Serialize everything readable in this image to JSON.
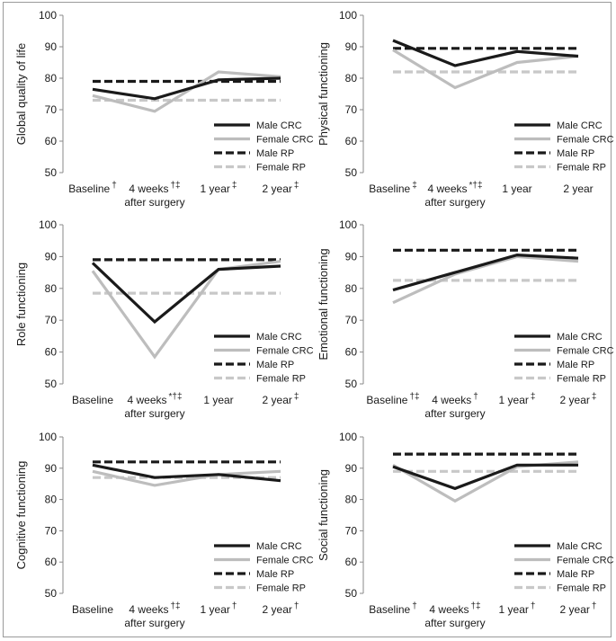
{
  "figure": {
    "legend_labels": [
      "Male CRC",
      "Female CRC",
      "Male RP",
      "Female RP"
    ],
    "series_styles": {
      "Male CRC": {
        "color": "#1a1a1a",
        "dash": "solid"
      },
      "Female CRC": {
        "color": "#bdbdbd",
        "dash": "solid"
      },
      "Male RP": {
        "color": "#1a1a1a",
        "dash": "dashed"
      },
      "Female RP": {
        "color": "#c8c8c8",
        "dash": "dashed"
      }
    }
  },
  "chart_data": [
    {
      "type": "line",
      "ylabel": "Global quality of life",
      "xlabel": "after surgery",
      "categories": [
        "Baseline",
        "4 weeks",
        "1 year",
        "2 year"
      ],
      "category_marks": [
        "†",
        "†‡",
        "‡",
        "‡"
      ],
      "ylim": [
        50,
        100
      ],
      "yticks": [
        50,
        60,
        70,
        80,
        90,
        100
      ],
      "legend_position": "bottom-right",
      "series": [
        {
          "name": "Male CRC",
          "values": [
            76.5,
            73.5,
            79.5,
            80
          ]
        },
        {
          "name": "Female CRC",
          "values": [
            74.5,
            69.5,
            82,
            80.5
          ]
        },
        {
          "name": "Male RP",
          "values": [
            79,
            79,
            79,
            79
          ]
        },
        {
          "name": "Female RP",
          "values": [
            73,
            73,
            73,
            73
          ]
        }
      ]
    },
    {
      "type": "line",
      "ylabel": "Physical functioning",
      "xlabel": "after surgery",
      "categories": [
        "Baseline",
        "4 weeks",
        "1 year",
        "2 year"
      ],
      "category_marks": [
        "‡",
        "*†‡",
        "",
        ""
      ],
      "ylim": [
        50,
        100
      ],
      "yticks": [
        50,
        60,
        70,
        80,
        90,
        100
      ],
      "legend_position": "bottom-right",
      "series": [
        {
          "name": "Male CRC",
          "values": [
            92,
            84,
            88.5,
            87
          ]
        },
        {
          "name": "Female CRC",
          "values": [
            89,
            77,
            85,
            87
          ]
        },
        {
          "name": "Male RP",
          "values": [
            89.5,
            89.5,
            89.5,
            89.5
          ]
        },
        {
          "name": "Female RP",
          "values": [
            82,
            82,
            82,
            82
          ]
        }
      ]
    },
    {
      "type": "line",
      "ylabel": "Role functioning",
      "xlabel": "after surgery",
      "categories": [
        "Baseline",
        "4 weeks",
        "1 year",
        "2 year"
      ],
      "category_marks": [
        "",
        "*†‡",
        "",
        "‡"
      ],
      "ylim": [
        50,
        100
      ],
      "yticks": [
        50,
        60,
        70,
        80,
        90,
        100
      ],
      "legend_position": "bottom-right",
      "series": [
        {
          "name": "Male CRC",
          "values": [
            88,
            69.5,
            86,
            87
          ]
        },
        {
          "name": "Female CRC",
          "values": [
            85.5,
            58.5,
            86,
            88.5
          ]
        },
        {
          "name": "Male RP",
          "values": [
            89,
            89,
            89,
            89
          ]
        },
        {
          "name": "Female RP",
          "values": [
            78.5,
            78.5,
            78.5,
            78.5
          ]
        }
      ]
    },
    {
      "type": "line",
      "ylabel": "Emotional  functioning",
      "xlabel": "after surgery",
      "categories": [
        "Baseline",
        "4 weeks",
        "1 year",
        "2 year"
      ],
      "category_marks": [
        "†‡",
        "†",
        "‡",
        "‡"
      ],
      "ylim": [
        50,
        100
      ],
      "yticks": [
        50,
        60,
        70,
        80,
        90,
        100
      ],
      "legend_position": "bottom-right",
      "series": [
        {
          "name": "Male CRC",
          "values": [
            79.5,
            85,
            90.5,
            89.5
          ]
        },
        {
          "name": "Female CRC",
          "values": [
            75.5,
            84.5,
            90,
            88.5
          ]
        },
        {
          "name": "Male RP",
          "values": [
            92,
            92,
            92,
            92
          ]
        },
        {
          "name": "Female RP",
          "values": [
            82.5,
            82.5,
            82.5,
            82.5
          ]
        }
      ]
    },
    {
      "type": "line",
      "ylabel": "Cognitive  functioning",
      "xlabel": "after surgery",
      "categories": [
        "Baseline",
        "4 weeks",
        "1 year",
        "2 year"
      ],
      "category_marks": [
        "",
        "†‡",
        "†",
        "†"
      ],
      "ylim": [
        50,
        100
      ],
      "yticks": [
        50,
        60,
        70,
        80,
        90,
        100
      ],
      "legend_position": "bottom-right",
      "series": [
        {
          "name": "Male CRC",
          "values": [
            91,
            87,
            88,
            86
          ]
        },
        {
          "name": "Female CRC",
          "values": [
            89,
            84.5,
            88,
            89
          ]
        },
        {
          "name": "Male RP",
          "values": [
            92,
            92,
            92,
            92
          ]
        },
        {
          "name": "Female RP",
          "values": [
            87,
            87,
            87,
            87
          ]
        }
      ]
    },
    {
      "type": "line",
      "ylabel": "Social functioning",
      "xlabel": "after surgery",
      "categories": [
        "Baseline",
        "4 weeks",
        "1 year",
        "2 year"
      ],
      "category_marks": [
        "†",
        "†‡",
        "†",
        "†"
      ],
      "ylim": [
        50,
        100
      ],
      "yticks": [
        50,
        60,
        70,
        80,
        90,
        100
      ],
      "legend_position": "bottom-right",
      "series": [
        {
          "name": "Male CRC",
          "values": [
            90.5,
            83.5,
            91,
            91
          ]
        },
        {
          "name": "Female CRC",
          "values": [
            91,
            79.5,
            90.5,
            92
          ]
        },
        {
          "name": "Male RP",
          "values": [
            94.5,
            94.5,
            94.5,
            94.5
          ]
        },
        {
          "name": "Female RP",
          "values": [
            89,
            89,
            89,
            89
          ]
        }
      ]
    }
  ]
}
